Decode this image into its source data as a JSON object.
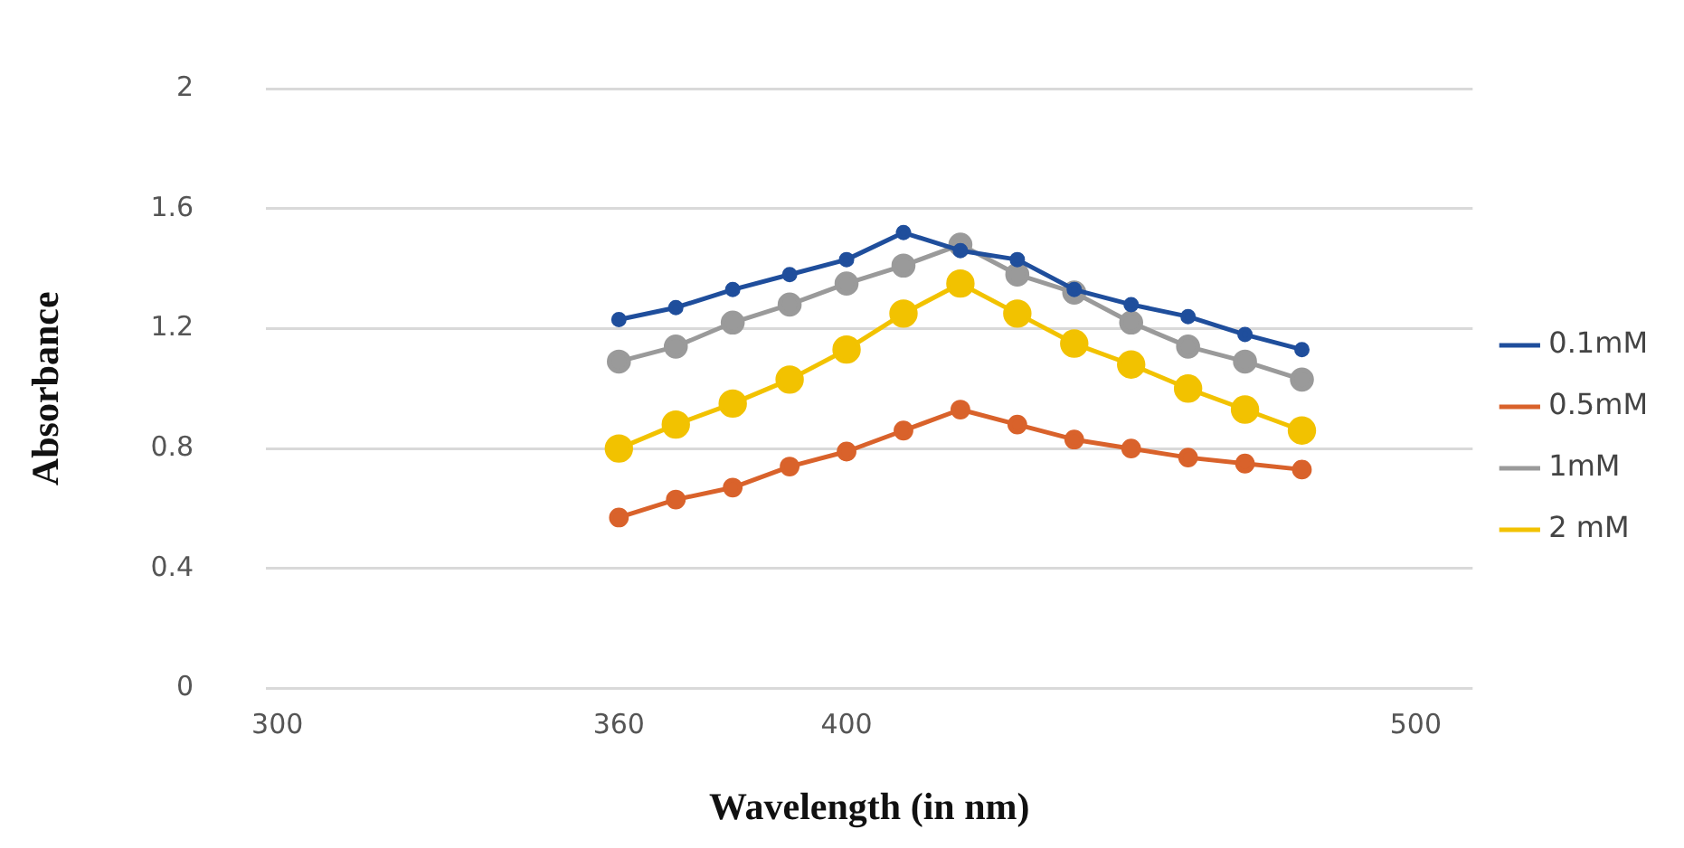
{
  "chart_data": {
    "type": "line",
    "xlabel": "Wavelength (in nm)",
    "ylabel": "Absorbance",
    "x": [
      360,
      370,
      380,
      390,
      400,
      410,
      420,
      430,
      440,
      450,
      460,
      470,
      480
    ],
    "xlim": [
      298,
      510
    ],
    "xticks": [
      300,
      360,
      400,
      500
    ],
    "ylim": [
      0,
      2
    ],
    "yticks": [
      0,
      0.4,
      0.8,
      1.2,
      1.6,
      2
    ],
    "grid": "y",
    "legend": "right",
    "marker": "circle",
    "line_style": "solid",
    "series": [
      {
        "name": "0.1mM",
        "color": "#1f4e9c",
        "values": [
          1.23,
          1.27,
          1.33,
          1.38,
          1.43,
          1.52,
          1.46,
          1.43,
          1.33,
          1.28,
          1.24,
          1.18,
          1.13
        ]
      },
      {
        "name": "0.5mM",
        "color": "#d9622b",
        "values": [
          0.57,
          0.63,
          0.67,
          0.74,
          0.79,
          0.86,
          0.93,
          0.88,
          0.83,
          0.8,
          0.77,
          0.75,
          0.73
        ]
      },
      {
        "name": "1mM",
        "color": "#9a9a9a",
        "values": [
          1.09,
          1.14,
          1.22,
          1.28,
          1.35,
          1.41,
          1.48,
          1.38,
          1.32,
          1.22,
          1.14,
          1.09,
          1.03
        ]
      },
      {
        "name": "2 mM",
        "color": "#f2c200",
        "values": [
          0.8,
          0.88,
          0.95,
          1.03,
          1.13,
          1.25,
          1.35,
          1.25,
          1.15,
          1.08,
          1,
          0.93,
          0.86
        ]
      }
    ]
  }
}
